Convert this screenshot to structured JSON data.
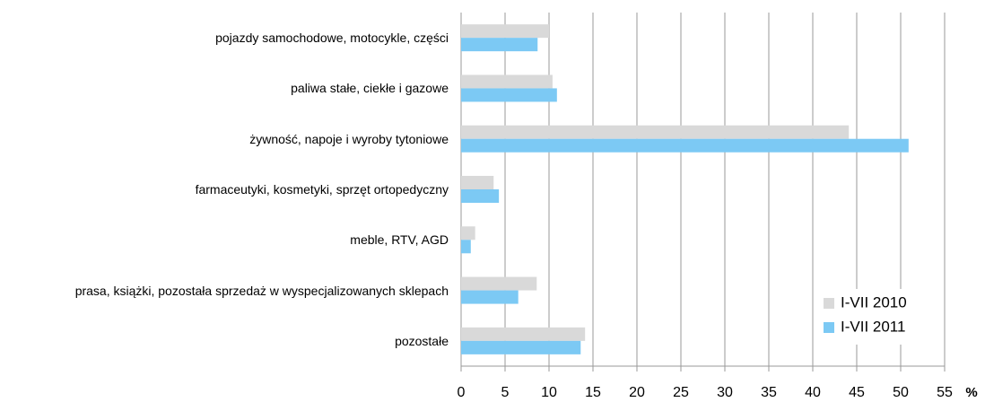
{
  "chart_data": {
    "type": "barh",
    "categories": [
      "pojazdy samochodowe, motocykle, części",
      "paliwa stałe, ciekłe i gazowe",
      "żywność, napoje i wyroby tytoniowe",
      "farmaceutyki, kosmetyki, sprzęt ortopedyczny",
      "meble, RTV, AGD",
      "prasa, książki, pozostała sprzedaż w wyspecjalizowanych sklepach",
      "pozostałe"
    ],
    "series": [
      {
        "name": "I-VII 2010",
        "color": "#d9d9d9",
        "values": [
          10.0,
          10.4,
          44.1,
          3.7,
          1.6,
          8.6,
          14.1
        ]
      },
      {
        "name": "I-VII 2011",
        "color": "#7cc9f4",
        "values": [
          8.7,
          10.9,
          50.9,
          4.3,
          1.1,
          6.5,
          13.6
        ]
      }
    ],
    "xlim": [
      0,
      55
    ],
    "xticks": [
      0,
      5,
      10,
      15,
      20,
      25,
      30,
      35,
      40,
      45,
      50,
      55
    ],
    "xlabel": "%",
    "grid": true,
    "legend": "lower right"
  }
}
